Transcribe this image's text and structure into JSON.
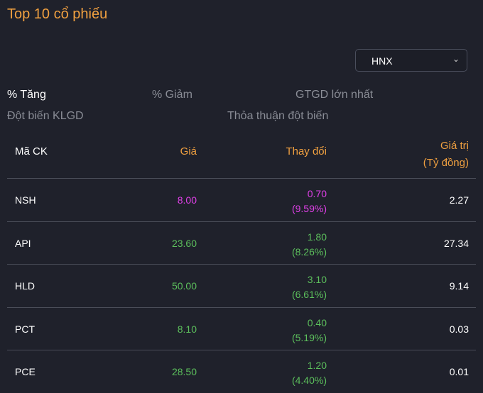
{
  "title": "Top 10 cổ phiếu",
  "exchange_select": {
    "value": "HNX"
  },
  "tabs": [
    "% Tăng",
    "% Giảm",
    "GTGD lớn nhất",
    "Đột biến KLGD",
    "Thỏa thuận đột biến"
  ],
  "active_tab": "% Tăng",
  "columns": {
    "symbol": "Mã CK",
    "price": "Giá",
    "change": "Thay đổi",
    "value_line1": "Giá trị",
    "value_line2": "(Tỷ đồng)"
  },
  "colors": {
    "accent": "#f0a040",
    "ceiling": "#e040e8",
    "up": "#5cbf5c"
  },
  "rows": [
    {
      "symbol": "NSH",
      "price": "8.00",
      "change": "0.70",
      "pct": "(9.59%)",
      "value": "2.27",
      "status": "ceiling"
    },
    {
      "symbol": "API",
      "price": "23.60",
      "change": "1.80",
      "pct": "(8.26%)",
      "value": "27.34",
      "status": "up"
    },
    {
      "symbol": "HLD",
      "price": "50.00",
      "change": "3.10",
      "pct": "(6.61%)",
      "value": "9.14",
      "status": "up"
    },
    {
      "symbol": "PCT",
      "price": "8.10",
      "change": "0.40",
      "pct": "(5.19%)",
      "value": "0.03",
      "status": "up"
    },
    {
      "symbol": "PCE",
      "price": "28.50",
      "change": "1.20",
      "pct": "(4.40%)",
      "value": "0.01",
      "status": "up"
    }
  ]
}
